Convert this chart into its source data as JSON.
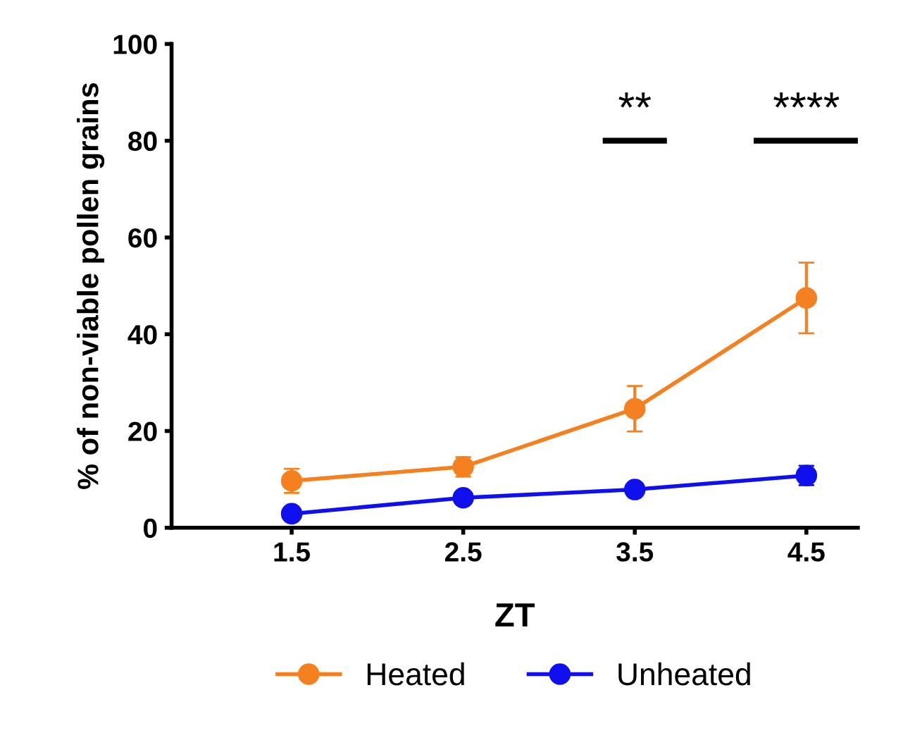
{
  "chart_data": {
    "type": "line",
    "xlabel": "ZT",
    "ylabel": "% of non-viable pollen grains",
    "categories": [
      "1.5",
      "2.5",
      "3.5",
      "4.5"
    ],
    "series": [
      {
        "name": "Heated",
        "color": "#f5801f",
        "values": [
          9.7,
          12.6,
          24.6,
          47.5
        ],
        "errors": [
          2.5,
          2,
          4.7,
          7.3
        ]
      },
      {
        "name": "Unheated",
        "color": "#1010ee",
        "values": [
          2.9,
          6.2,
          7.9,
          10.8
        ],
        "errors": [
          1,
          1.2,
          1.3,
          2
        ]
      }
    ],
    "ylim": [
      0,
      100
    ],
    "yticks": [
      0,
      20,
      40,
      60,
      80,
      100
    ],
    "grid": false,
    "legend": "bottom",
    "marker": "circle",
    "line_style": "solid",
    "annotations": [
      "**",
      "****"
    ]
  }
}
